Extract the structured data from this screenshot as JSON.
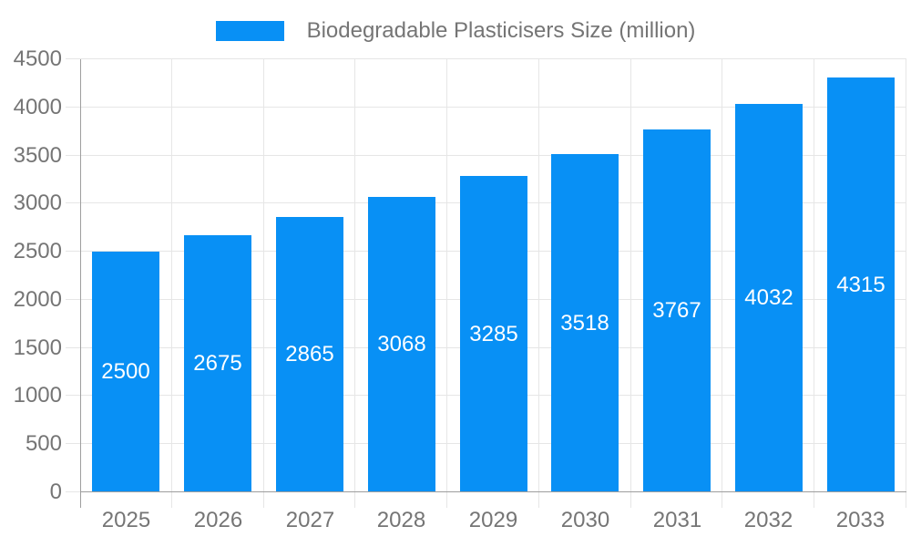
{
  "legend": {
    "label": "Biodegradable Plasticisers Size (million)"
  },
  "colors": {
    "bar": "#0890f5",
    "bar_label": "#ffffff",
    "axis_text": "#757575",
    "grid_line": "#e6e6e6",
    "axis_line": "#9e9e9e"
  },
  "chart_data": {
    "type": "bar",
    "title": "Biodegradable Plasticisers Size (million)",
    "categories": [
      "2025",
      "2026",
      "2027",
      "2028",
      "2029",
      "2030",
      "2031",
      "2032",
      "2033"
    ],
    "values": [
      2500,
      2675,
      2865,
      3068,
      3285,
      3518,
      3767,
      4032,
      4315
    ],
    "series": [
      {
        "name": "Biodegradable Plasticisers Size (million)",
        "values": [
          2500,
          2675,
          2865,
          3068,
          3285,
          3518,
          3767,
          4032,
          4315
        ]
      }
    ],
    "xlabel": "",
    "ylabel": "",
    "ylim": [
      0,
      4500
    ],
    "ytick_step": 500,
    "ytick_labels": [
      "0",
      "500",
      "1000",
      "1500",
      "2000",
      "2500",
      "3000",
      "3500",
      "4000",
      "4500"
    ],
    "grid": true,
    "vertical_grid": true,
    "legend_position": "top",
    "bar_value_labels": "inside-center"
  }
}
